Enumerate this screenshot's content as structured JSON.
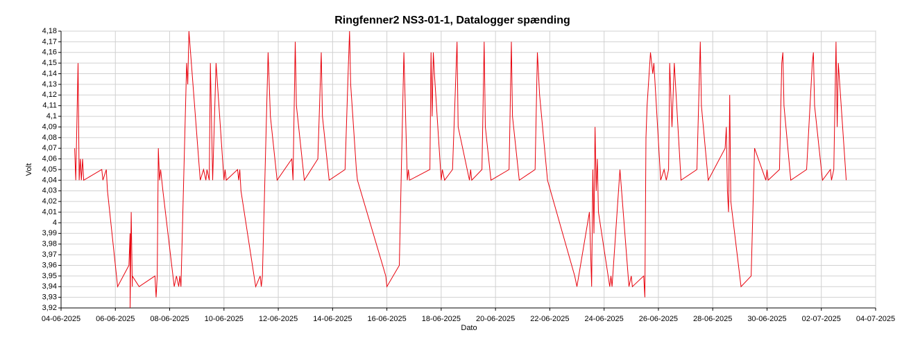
{
  "chart_data": {
    "type": "line",
    "title": "Ringfenner2 NS3-01-1, Datalogger spænding",
    "xlabel": "Dato",
    "ylabel": "Volt",
    "grid": true,
    "xlim": [
      "2025-06-04T00:00",
      "2025-07-04T00:00"
    ],
    "xticks": [
      {
        "value": "2025-06-04T00:00",
        "label": "04-06-2025"
      },
      {
        "value": "2025-06-06T00:00",
        "label": "06-06-2025"
      },
      {
        "value": "2025-06-08T00:00",
        "label": "08-06-2025"
      },
      {
        "value": "2025-06-10T00:00",
        "label": "10-06-2025"
      },
      {
        "value": "2025-06-12T00:00",
        "label": "12-06-2025"
      },
      {
        "value": "2025-06-14T00:00",
        "label": "14-06-2025"
      },
      {
        "value": "2025-06-16T00:00",
        "label": "16-06-2025"
      },
      {
        "value": "2025-06-18T00:00",
        "label": "18-06-2025"
      },
      {
        "value": "2025-06-20T00:00",
        "label": "20-06-2025"
      },
      {
        "value": "2025-06-22T00:00",
        "label": "22-06-2025"
      },
      {
        "value": "2025-06-24T00:00",
        "label": "24-06-2025"
      },
      {
        "value": "2025-06-26T00:00",
        "label": "26-06-2025"
      },
      {
        "value": "2025-06-28T00:00",
        "label": "28-06-2025"
      },
      {
        "value": "2025-06-30T00:00",
        "label": "30-06-2025"
      },
      {
        "value": "2025-07-02T00:00",
        "label": "02-07-2025"
      },
      {
        "value": "2025-07-04T00:00",
        "label": "04-07-2025"
      }
    ],
    "ylim": [
      3.92,
      4.18
    ],
    "yticks": [
      {
        "value": 3.92,
        "label": "3,92"
      },
      {
        "value": 3.93,
        "label": "3,93"
      },
      {
        "value": 3.94,
        "label": "3,94"
      },
      {
        "value": 3.95,
        "label": "3,95"
      },
      {
        "value": 3.96,
        "label": "3,96"
      },
      {
        "value": 3.97,
        "label": "3,97"
      },
      {
        "value": 3.98,
        "label": "3,98"
      },
      {
        "value": 3.99,
        "label": "3,99"
      },
      {
        "value": 4,
        "label": "4"
      },
      {
        "value": 4.01,
        "label": "4,01"
      },
      {
        "value": 4.02,
        "label": "4,02"
      },
      {
        "value": 4.03,
        "label": "4,03"
      },
      {
        "value": 4.04,
        "label": "4,04"
      },
      {
        "value": 4.05,
        "label": "4,05"
      },
      {
        "value": 4.06,
        "label": "4,06"
      },
      {
        "value": 4.07,
        "label": "4,07"
      },
      {
        "value": 4.08,
        "label": "4,08"
      },
      {
        "value": 4.09,
        "label": "4,09"
      },
      {
        "value": 4.1,
        "label": "4,1"
      },
      {
        "value": 4.11,
        "label": "4,11"
      },
      {
        "value": 4.12,
        "label": "4,12"
      },
      {
        "value": 4.13,
        "label": "4,13"
      },
      {
        "value": 4.14,
        "label": "4,14"
      },
      {
        "value": 4.15,
        "label": "4,15"
      },
      {
        "value": 4.16,
        "label": "4,16"
      },
      {
        "value": 4.17,
        "label": "4,17"
      },
      {
        "value": 4.18,
        "label": "4,18"
      }
    ],
    "series": [
      {
        "color": "#e8000b",
        "x": [
          "2025-06-04T12:00",
          "2025-06-04T13:00",
          "2025-06-04T15:00",
          "2025-06-04T16:00",
          "2025-06-04T17:00",
          "2025-06-04T18:00",
          "2025-06-04T19:00",
          "2025-06-04T20:00",
          "2025-06-05T12:00",
          "2025-06-05T13:00",
          "2025-06-05T16:00",
          "2025-06-05T17:00",
          "2025-06-06T01:00",
          "2025-06-06T02:00",
          "2025-06-06T12:00",
          "2025-06-06T13:00",
          "2025-06-06T13:00",
          "2025-06-06T14:00",
          "2025-06-06T15:00",
          "2025-06-06T15:00",
          "2025-06-06T21:00",
          "2025-06-07T11:00",
          "2025-06-07T12:00",
          "2025-06-07T13:00",
          "2025-06-07T14:00",
          "2025-06-07T15:00",
          "2025-06-07T16:00",
          "2025-06-07T18:00",
          "2025-06-08T04:00",
          "2025-06-08T06:00",
          "2025-06-08T08:00",
          "2025-06-08T09:00",
          "2025-06-08T10:00",
          "2025-06-08T15:00",
          "2025-06-08T16:00",
          "2025-06-08T17:00",
          "2025-06-09T03:00",
          "2025-06-09T06:00",
          "2025-06-09T08:00",
          "2025-06-09T09:00",
          "2025-06-09T11:00",
          "2025-06-09T12:00",
          "2025-06-09T14:00",
          "2025-06-09T17:00",
          "2025-06-10T00:00",
          "2025-06-10T01:00",
          "2025-06-10T02:00",
          "2025-06-10T12:00",
          "2025-06-10T13:00",
          "2025-06-10T14:00",
          "2025-06-10T15:00",
          "2025-06-11T04:00",
          "2025-06-11T08:00",
          "2025-06-11T09:00",
          "2025-06-11T10:00",
          "2025-06-11T15:00",
          "2025-06-11T17:00",
          "2025-06-11T23:00",
          "2025-06-12T12:00",
          "2025-06-12T13:00",
          "2025-06-12T15:00",
          "2025-06-12T16:00",
          "2025-06-12T23:00",
          "2025-06-13T11:00",
          "2025-06-13T14:00",
          "2025-06-13T15:00",
          "2025-06-13T21:00",
          "2025-06-14T11:00",
          "2025-06-14T14:00",
          "2025-06-14T15:00",
          "2025-06-14T16:00",
          "2025-06-14T21:00",
          "2025-06-14T22:00",
          "2025-06-15T23:00",
          "2025-06-16T00:00",
          "2025-06-16T11:00",
          "2025-06-16T15:00",
          "2025-06-16T18:00",
          "2025-06-16T19:00",
          "2025-06-16T20:00",
          "2025-06-17T14:00",
          "2025-06-17T15:00",
          "2025-06-17T16:00",
          "2025-06-17T17:00",
          "2025-06-17T18:00",
          "2025-06-18T00:00",
          "2025-06-18T01:00",
          "2025-06-18T03:00",
          "2025-06-18T10:00",
          "2025-06-18T14:00",
          "2025-06-18T15:00",
          "2025-06-19T01:00",
          "2025-06-19T02:00",
          "2025-06-19T03:00",
          "2025-06-19T12:00",
          "2025-06-19T14:00",
          "2025-06-19T15:00",
          "2025-06-19T20:00",
          "2025-06-20T12:00",
          "2025-06-20T14:00",
          "2025-06-20T15:00",
          "2025-06-20T21:00",
          "2025-06-21T11:00",
          "2025-06-21T13:00",
          "2025-06-21T15:00",
          "2025-06-21T22:00",
          "2025-06-22T22:00",
          "2025-06-23T00:00",
          "2025-06-23T11:00",
          "2025-06-23T13:00",
          "2025-06-23T14:00",
          "2025-06-23T15:00",
          "2025-06-23T16:00",
          "2025-06-23T17:00",
          "2025-06-23T18:00",
          "2025-06-23T19:00",
          "2025-06-24T05:00",
          "2025-06-24T06:00",
          "2025-06-24T07:00",
          "2025-06-24T14:00",
          "2025-06-24T22:00",
          "2025-06-25T00:00",
          "2025-06-25T01:00",
          "2025-06-25T11:00",
          "2025-06-25T12:00",
          "2025-06-25T13:00",
          "2025-06-25T14:00",
          "2025-06-25T17:00",
          "2025-06-25T19:00",
          "2025-06-25T20:00",
          "2025-06-26T02:00",
          "2025-06-26T05:00",
          "2025-06-26T07:00",
          "2025-06-26T09:00",
          "2025-06-26T10:00",
          "2025-06-26T12:00",
          "2025-06-26T14:00",
          "2025-06-26T20:00",
          "2025-06-27T10:00",
          "2025-06-27T13:00",
          "2025-06-27T14:00",
          "2025-06-27T20:00",
          "2025-06-28T11:00",
          "2025-06-28T12:00",
          "2025-06-28T13:00",
          "2025-06-28T14:00",
          "2025-06-28T15:00",
          "2025-06-28T16:00",
          "2025-06-29T01:00",
          "2025-06-29T10:00",
          "2025-06-29T13:00",
          "2025-06-29T23:00",
          "2025-06-30T00:00",
          "2025-06-30T01:00",
          "2025-06-30T11:00",
          "2025-06-30T13:00",
          "2025-06-30T14:00",
          "2025-06-30T15:00",
          "2025-06-30T21:00",
          "2025-07-01T11:00",
          "2025-07-01T16:00",
          "2025-07-01T17:00",
          "2025-07-01T18:00",
          "2025-07-02T01:00",
          "2025-07-02T08:00",
          "2025-07-02T09:00",
          "2025-07-02T11:00",
          "2025-07-02T13:00",
          "2025-07-02T14:00",
          "2025-07-02T15:00",
          "2025-07-02T22:00"
        ],
        "values": [
          4.07,
          4.04,
          4.15,
          4.04,
          4.06,
          4.04,
          4.06,
          4.04,
          4.05,
          4.04,
          4.05,
          4.03,
          3.95,
          3.94,
          3.96,
          3.99,
          3.92,
          4.01,
          3.94,
          3.95,
          3.94,
          3.95,
          3.93,
          3.95,
          4.07,
          4.04,
          4.05,
          4.03,
          3.94,
          3.95,
          3.94,
          3.95,
          3.94,
          4.15,
          4.13,
          4.18,
          4.04,
          4.05,
          4.04,
          4.05,
          4.04,
          4.15,
          4.04,
          4.15,
          4.04,
          4.05,
          4.04,
          4.05,
          4.04,
          4.05,
          4.03,
          3.94,
          3.95,
          3.94,
          3.95,
          4.16,
          4.1,
          4.04,
          4.06,
          4.04,
          4.17,
          4.11,
          4.04,
          4.06,
          4.16,
          4.1,
          4.04,
          4.05,
          4.15,
          4.18,
          4.13,
          4.05,
          4.04,
          3.95,
          3.94,
          3.96,
          4.16,
          4.04,
          4.05,
          4.04,
          4.05,
          4.16,
          4.1,
          4.16,
          4.14,
          4.04,
          4.05,
          4.04,
          4.05,
          4.17,
          4.09,
          4.04,
          4.05,
          4.04,
          4.05,
          4.17,
          4.09,
          4.04,
          4.05,
          4.17,
          4.1,
          4.04,
          4.05,
          4.16,
          4.12,
          4.04,
          3.95,
          3.94,
          4.01,
          3.94,
          4.05,
          3.99,
          4.09,
          4.03,
          4.06,
          4.01,
          3.94,
          3.95,
          3.94,
          4.05,
          3.94,
          3.95,
          3.94,
          3.95,
          3.93,
          4.08,
          4.11,
          4.16,
          4.14,
          4.15,
          4.04,
          4.05,
          4.04,
          4.05,
          4.15,
          4.09,
          4.15,
          4.04,
          4.05,
          4.17,
          4.11,
          4.04,
          4.07,
          4.09,
          4.03,
          4.01,
          4.12,
          4.02,
          3.94,
          3.95,
          4.07,
          4.04,
          4.05,
          4.04,
          4.05,
          4.15,
          4.16,
          4.11,
          4.04,
          4.05,
          4.15,
          4.16,
          4.11,
          4.04,
          4.05,
          4.04,
          4.05,
          4.17,
          4.09,
          4.15,
          4.04
        ]
      }
    ]
  }
}
